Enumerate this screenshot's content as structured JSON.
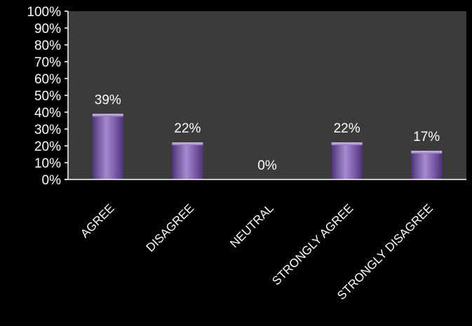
{
  "chart_data": {
    "type": "bar",
    "categories": [
      "AGREE",
      "DISAGREE",
      "NEUTRAL",
      "STRONGLY AGREE",
      "STRONGLY DISAGREE"
    ],
    "values": [
      39,
      22,
      0,
      22,
      17
    ],
    "data_labels": [
      "39%",
      "22%",
      "0%",
      "22%",
      "17%"
    ],
    "y_ticks": [
      "0%",
      "10%",
      "20%",
      "30%",
      "40%",
      "50%",
      "60%",
      "70%",
      "80%",
      "90%",
      "100%"
    ],
    "ylim": [
      0,
      100
    ],
    "title": "",
    "xlabel": "",
    "ylabel": "",
    "grid": false,
    "legend": "none",
    "colors": {
      "page_background": "#000000",
      "plot_background": "#3b3b3b",
      "bar_light": "#a58ad0",
      "bar_mid": "#7a5aa8",
      "bar_dark": "#4e3478",
      "axis": "#ffffff",
      "text": "#ffffff"
    }
  }
}
